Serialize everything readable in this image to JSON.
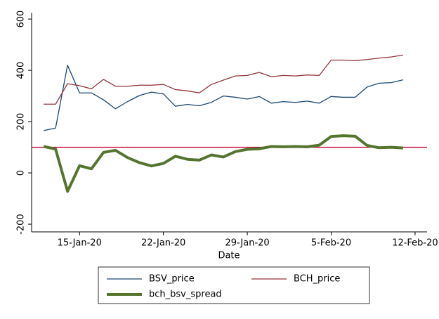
{
  "chart_data": {
    "type": "line",
    "x_label": "Date",
    "x": [
      "2020-01-12",
      "2020-01-13",
      "2020-01-14",
      "2020-01-15",
      "2020-01-16",
      "2020-01-17",
      "2020-01-18",
      "2020-01-19",
      "2020-01-20",
      "2020-01-21",
      "2020-01-22",
      "2020-01-23",
      "2020-01-24",
      "2020-01-25",
      "2020-01-26",
      "2020-01-27",
      "2020-01-28",
      "2020-01-29",
      "2020-01-30",
      "2020-01-31",
      "2020-02-01",
      "2020-02-02",
      "2020-02-03",
      "2020-02-04",
      "2020-02-05",
      "2020-02-06",
      "2020-02-07",
      "2020-02-08",
      "2020-02-09",
      "2020-02-10",
      "2020-02-11"
    ],
    "series": [
      {
        "name": "BSV_price",
        "color": "#1a476f",
        "width": 1.3,
        "values": [
          165,
          175,
          420,
          312,
          312,
          285,
          250,
          278,
          302,
          315,
          308,
          260,
          267,
          262,
          275,
          300,
          295,
          288,
          298,
          272,
          278,
          275,
          280,
          272,
          298,
          295,
          295,
          335,
          350,
          352,
          363
        ]
      },
      {
        "name": "BCH_price",
        "color": "#90353b",
        "width": 1.3,
        "values": [
          268,
          268,
          348,
          340,
          328,
          365,
          338,
          338,
          342,
          342,
          345,
          325,
          320,
          312,
          345,
          362,
          378,
          380,
          392,
          375,
          380,
          378,
          382,
          380,
          440,
          440,
          438,
          442,
          448,
          452,
          460
        ]
      },
      {
        "name": "bch_bsv_spread",
        "color": "#55752f",
        "width": 4,
        "values": [
          103,
          93,
          -72,
          28,
          16,
          80,
          88,
          60,
          40,
          27,
          37,
          65,
          53,
          50,
          70,
          62,
          83,
          92,
          94,
          103,
          102,
          103,
          102,
          108,
          142,
          145,
          143,
          107,
          98,
          100,
          97
        ]
      }
    ],
    "reference_line": {
      "value": 100,
      "color": "#c10534"
    },
    "xlim": [
      "2020-01-11",
      "2020-02-13"
    ],
    "xticks": [
      {
        "value": "2020-01-15",
        "label": "15-Jan-20"
      },
      {
        "value": "2020-01-22",
        "label": "22-Jan-20"
      },
      {
        "value": "2020-01-29",
        "label": "29-Jan-20"
      },
      {
        "value": "2020-02-05",
        "label": "5-Feb-20"
      },
      {
        "value": "2020-02-12",
        "label": "12-Feb-20"
      }
    ],
    "ylim": [
      -230,
      625
    ],
    "yticks": [
      -200,
      0,
      200,
      400,
      600
    ],
    "grid": false,
    "legend": "bottom"
  }
}
